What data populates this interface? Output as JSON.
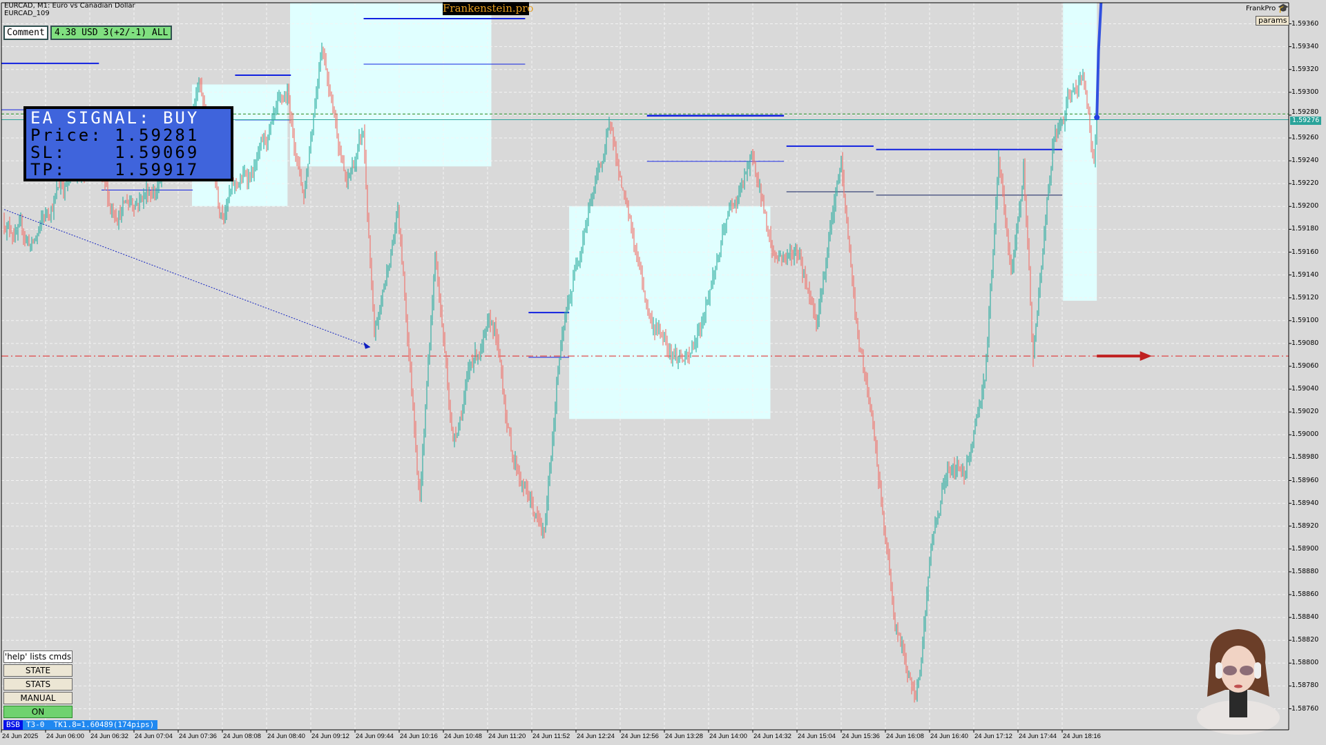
{
  "header": {
    "symbol_line": "EURCAD, M1:  Euro vs Canadian Dollar",
    "chart_id": "EURCAD_109"
  },
  "comment": {
    "label": "Comment",
    "value": "4.38 USD 3(+2/-1) ALL"
  },
  "brand": {
    "label": "Frankenstein.pro",
    "text_color": "#e8a020"
  },
  "top_right": {
    "name": "FrankPro",
    "icon": "graduation-cap-icon",
    "params_label": "params"
  },
  "signal": {
    "title": "EA SIGNAL: BUY",
    "price_line": "Price: 1.59281",
    "sl_line": "SL:    1.59069",
    "tp_line": "TP:    1.59917",
    "bg": "#3f64dc"
  },
  "controls": {
    "help": "'help' lists cmds",
    "state": "STATE",
    "stats": "STATS",
    "manual": "MANUAL",
    "on": "ON"
  },
  "status_bar": {
    "tag": "BSB",
    "text": "T3-0  TK1.8=1.60489(174pips)"
  },
  "bid_label": "1.59276",
  "chart_data": {
    "type": "candlestick",
    "symbol": "EURCAD",
    "timeframe": "M1",
    "ylim": [
      1.5874,
      1.5937
    ],
    "grid": true,
    "colors": {
      "up": "#35b0a4",
      "down": "#f07870",
      "bid_line": "#2aa39a",
      "entry_line": "#1a8a1a",
      "sl_line": "#e02020"
    },
    "levels": {
      "bid": 1.59276,
      "entry": 1.59281,
      "sl": 1.59069
    },
    "y_ticks": [
      "1.59360",
      "1.59340",
      "1.59320",
      "1.59300",
      "1.59280",
      "1.59260",
      "1.59240",
      "1.59220",
      "1.59200",
      "1.59180",
      "1.59160",
      "1.59140",
      "1.59120",
      "1.59100",
      "1.59080",
      "1.59060",
      "1.59040",
      "1.59020",
      "1.59000",
      "1.58980",
      "1.58960",
      "1.58940",
      "1.58920",
      "1.58900",
      "1.58880",
      "1.58860",
      "1.58840",
      "1.58820",
      "1.58800",
      "1.58780",
      "1.58760"
    ],
    "x_ticks": [
      "24 Jun 2025",
      "24 Jun 06:00",
      "24 Jun 06:32",
      "24 Jun 07:04",
      "24 Jun 07:36",
      "24 Jun 08:08",
      "24 Jun 08:40",
      "24 Jun 09:12",
      "24 Jun 09:44",
      "24 Jun 10:16",
      "24 Jun 10:48",
      "24 Jun 11:20",
      "24 Jun 11:52",
      "24 Jun 12:24",
      "24 Jun 12:56",
      "24 Jun 13:28",
      "24 Jun 14:00",
      "24 Jun 14:32",
      "24 Jun 15:04",
      "24 Jun 15:36",
      "24 Jun 16:08",
      "24 Jun 16:40",
      "24 Jun 17:12",
      "24 Jun 17:44",
      "24 Jun 18:16"
    ],
    "price_path": [
      [
        "05:30",
        1.59188
      ],
      [
        "05:51",
        1.59166
      ],
      [
        "06:10",
        1.59218
      ],
      [
        "06:34",
        1.5924
      ],
      [
        "06:47",
        1.59196
      ],
      [
        "07:29",
        1.59225
      ],
      [
        "07:51",
        1.5931
      ],
      [
        "08:06",
        1.59203
      ],
      [
        "08:31",
        1.59233
      ],
      [
        "08:55",
        1.59292
      ],
      [
        "09:07",
        1.5921
      ],
      [
        "09:20",
        1.59351
      ],
      [
        "09:38",
        1.59218
      ],
      [
        "09:50",
        1.59262
      ],
      [
        "09:58",
        1.59077
      ],
      [
        "10:15",
        1.59196
      ],
      [
        "10:31",
        1.58951
      ],
      [
        "10:42",
        1.59158
      ],
      [
        "10:55",
        1.58996
      ],
      [
        "11:10",
        1.5907
      ],
      [
        "11:25",
        1.59092
      ],
      [
        "11:37",
        1.58988
      ],
      [
        "12:01",
        1.58907
      ],
      [
        "12:11",
        1.59062
      ],
      [
        "12:30",
        1.59188
      ],
      [
        "12:50",
        1.5927
      ],
      [
        "13:00",
        1.59196
      ],
      [
        "13:18",
        1.591
      ],
      [
        "13:46",
        1.59062
      ],
      [
        "14:14",
        1.59188
      ],
      [
        "14:32",
        1.5924
      ],
      [
        "14:47",
        1.59158
      ],
      [
        "15:06",
        1.59158
      ],
      [
        "15:18",
        1.59107
      ],
      [
        "15:36",
        1.59233
      ],
      [
        "15:48",
        1.59085
      ],
      [
        "15:58",
        1.59011
      ],
      [
        "16:15",
        1.58833
      ],
      [
        "16:30",
        1.58767
      ],
      [
        "16:41",
        1.589
      ],
      [
        "16:53",
        1.58974
      ],
      [
        "17:05",
        1.58966
      ],
      [
        "17:20",
        1.59055
      ],
      [
        "17:30",
        1.59233
      ],
      [
        "17:39",
        1.59136
      ],
      [
        "17:48",
        1.59233
      ],
      [
        "17:55",
        1.5907
      ],
      [
        "18:09",
        1.59248
      ],
      [
        "18:22",
        1.59292
      ],
      [
        "18:31",
        1.59322
      ],
      [
        "18:39",
        1.5924
      ],
      [
        "18:41",
        1.59277
      ]
    ]
  }
}
